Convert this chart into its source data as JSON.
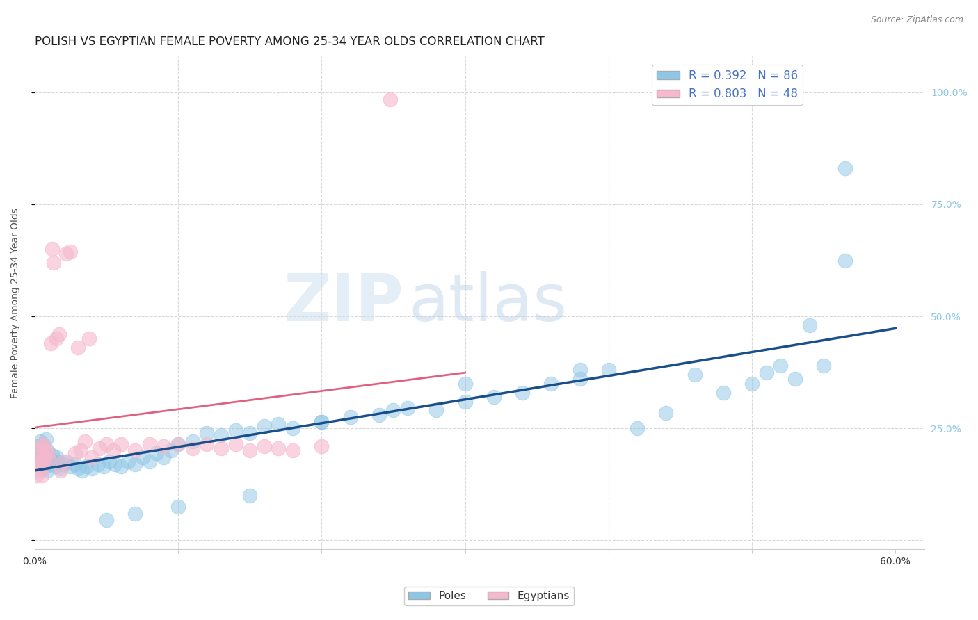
{
  "title": "POLISH VS EGYPTIAN FEMALE POVERTY AMONG 25-34 YEAR OLDS CORRELATION CHART",
  "source": "Source: ZipAtlas.com",
  "ylabel": "Female Poverty Among 25-34 Year Olds",
  "xlim": [
    0.0,
    0.62
  ],
  "ylim": [
    -0.02,
    1.08
  ],
  "yticks": [
    0.0,
    0.25,
    0.5,
    0.75,
    1.0
  ],
  "yticklabels": [
    "",
    "25.0%",
    "50.0%",
    "75.0%",
    "100.0%"
  ],
  "poles_R": 0.392,
  "poles_N": 86,
  "egyptians_R": 0.803,
  "egyptians_N": 48,
  "poles_color": "#8ec6e6",
  "poles_line_color": "#1a4f8a",
  "egyptians_color": "#f5b8cc",
  "egyptians_line_color": "#e06080",
  "background_color": "#ffffff",
  "grid_color": "#d8d8d8",
  "watermark_zip": "ZIP",
  "watermark_atlas": "atlas",
  "title_fontsize": 12,
  "axis_label_fontsize": 10,
  "tick_fontsize": 10,
  "legend_label_color": "#4472c4",
  "poles_x": [
    0.001,
    0.001,
    0.002,
    0.002,
    0.003,
    0.003,
    0.004,
    0.004,
    0.005,
    0.005,
    0.006,
    0.006,
    0.007,
    0.007,
    0.008,
    0.008,
    0.009,
    0.009,
    0.01,
    0.011,
    0.012,
    0.013,
    0.014,
    0.015,
    0.016,
    0.018,
    0.02,
    0.022,
    0.025,
    0.028,
    0.03,
    0.033,
    0.036,
    0.04,
    0.044,
    0.048,
    0.052,
    0.056,
    0.06,
    0.065,
    0.07,
    0.075,
    0.08,
    0.085,
    0.09,
    0.095,
    0.1,
    0.11,
    0.12,
    0.13,
    0.14,
    0.15,
    0.16,
    0.17,
    0.18,
    0.2,
    0.22,
    0.24,
    0.26,
    0.28,
    0.3,
    0.32,
    0.34,
    0.36,
    0.38,
    0.4,
    0.42,
    0.44,
    0.46,
    0.48,
    0.5,
    0.51,
    0.52,
    0.53,
    0.54,
    0.55,
    0.565,
    0.565,
    0.38,
    0.3,
    0.25,
    0.2,
    0.15,
    0.1,
    0.07,
    0.05
  ],
  "poles_y": [
    0.2,
    0.175,
    0.21,
    0.185,
    0.165,
    0.195,
    0.18,
    0.22,
    0.17,
    0.19,
    0.16,
    0.215,
    0.175,
    0.195,
    0.185,
    0.225,
    0.155,
    0.2,
    0.185,
    0.17,
    0.19,
    0.175,
    0.165,
    0.185,
    0.175,
    0.16,
    0.17,
    0.175,
    0.165,
    0.17,
    0.16,
    0.155,
    0.165,
    0.16,
    0.17,
    0.165,
    0.175,
    0.17,
    0.165,
    0.175,
    0.17,
    0.185,
    0.175,
    0.195,
    0.185,
    0.2,
    0.215,
    0.22,
    0.24,
    0.235,
    0.245,
    0.24,
    0.255,
    0.26,
    0.25,
    0.265,
    0.275,
    0.28,
    0.295,
    0.29,
    0.31,
    0.32,
    0.33,
    0.35,
    0.36,
    0.38,
    0.25,
    0.285,
    0.37,
    0.33,
    0.35,
    0.375,
    0.39,
    0.36,
    0.48,
    0.39,
    0.83,
    0.625,
    0.38,
    0.35,
    0.29,
    0.265,
    0.1,
    0.075,
    0.06,
    0.045
  ],
  "egyptians_x": [
    0.001,
    0.001,
    0.002,
    0.002,
    0.003,
    0.003,
    0.004,
    0.005,
    0.005,
    0.006,
    0.006,
    0.007,
    0.008,
    0.009,
    0.01,
    0.011,
    0.012,
    0.013,
    0.015,
    0.017,
    0.018,
    0.02,
    0.022,
    0.025,
    0.028,
    0.03,
    0.032,
    0.035,
    0.038,
    0.04,
    0.045,
    0.05,
    0.055,
    0.06,
    0.07,
    0.08,
    0.09,
    0.1,
    0.11,
    0.12,
    0.13,
    0.14,
    0.15,
    0.16,
    0.17,
    0.18,
    0.2,
    0.248
  ],
  "egyptians_y": [
    0.145,
    0.175,
    0.155,
    0.185,
    0.16,
    0.2,
    0.17,
    0.145,
    0.21,
    0.175,
    0.215,
    0.185,
    0.2,
    0.195,
    0.18,
    0.44,
    0.65,
    0.62,
    0.45,
    0.46,
    0.155,
    0.175,
    0.64,
    0.645,
    0.195,
    0.43,
    0.2,
    0.22,
    0.45,
    0.185,
    0.205,
    0.215,
    0.2,
    0.215,
    0.2,
    0.215,
    0.21,
    0.215,
    0.205,
    0.215,
    0.205,
    0.215,
    0.2,
    0.21,
    0.205,
    0.2,
    0.21,
    0.985
  ]
}
